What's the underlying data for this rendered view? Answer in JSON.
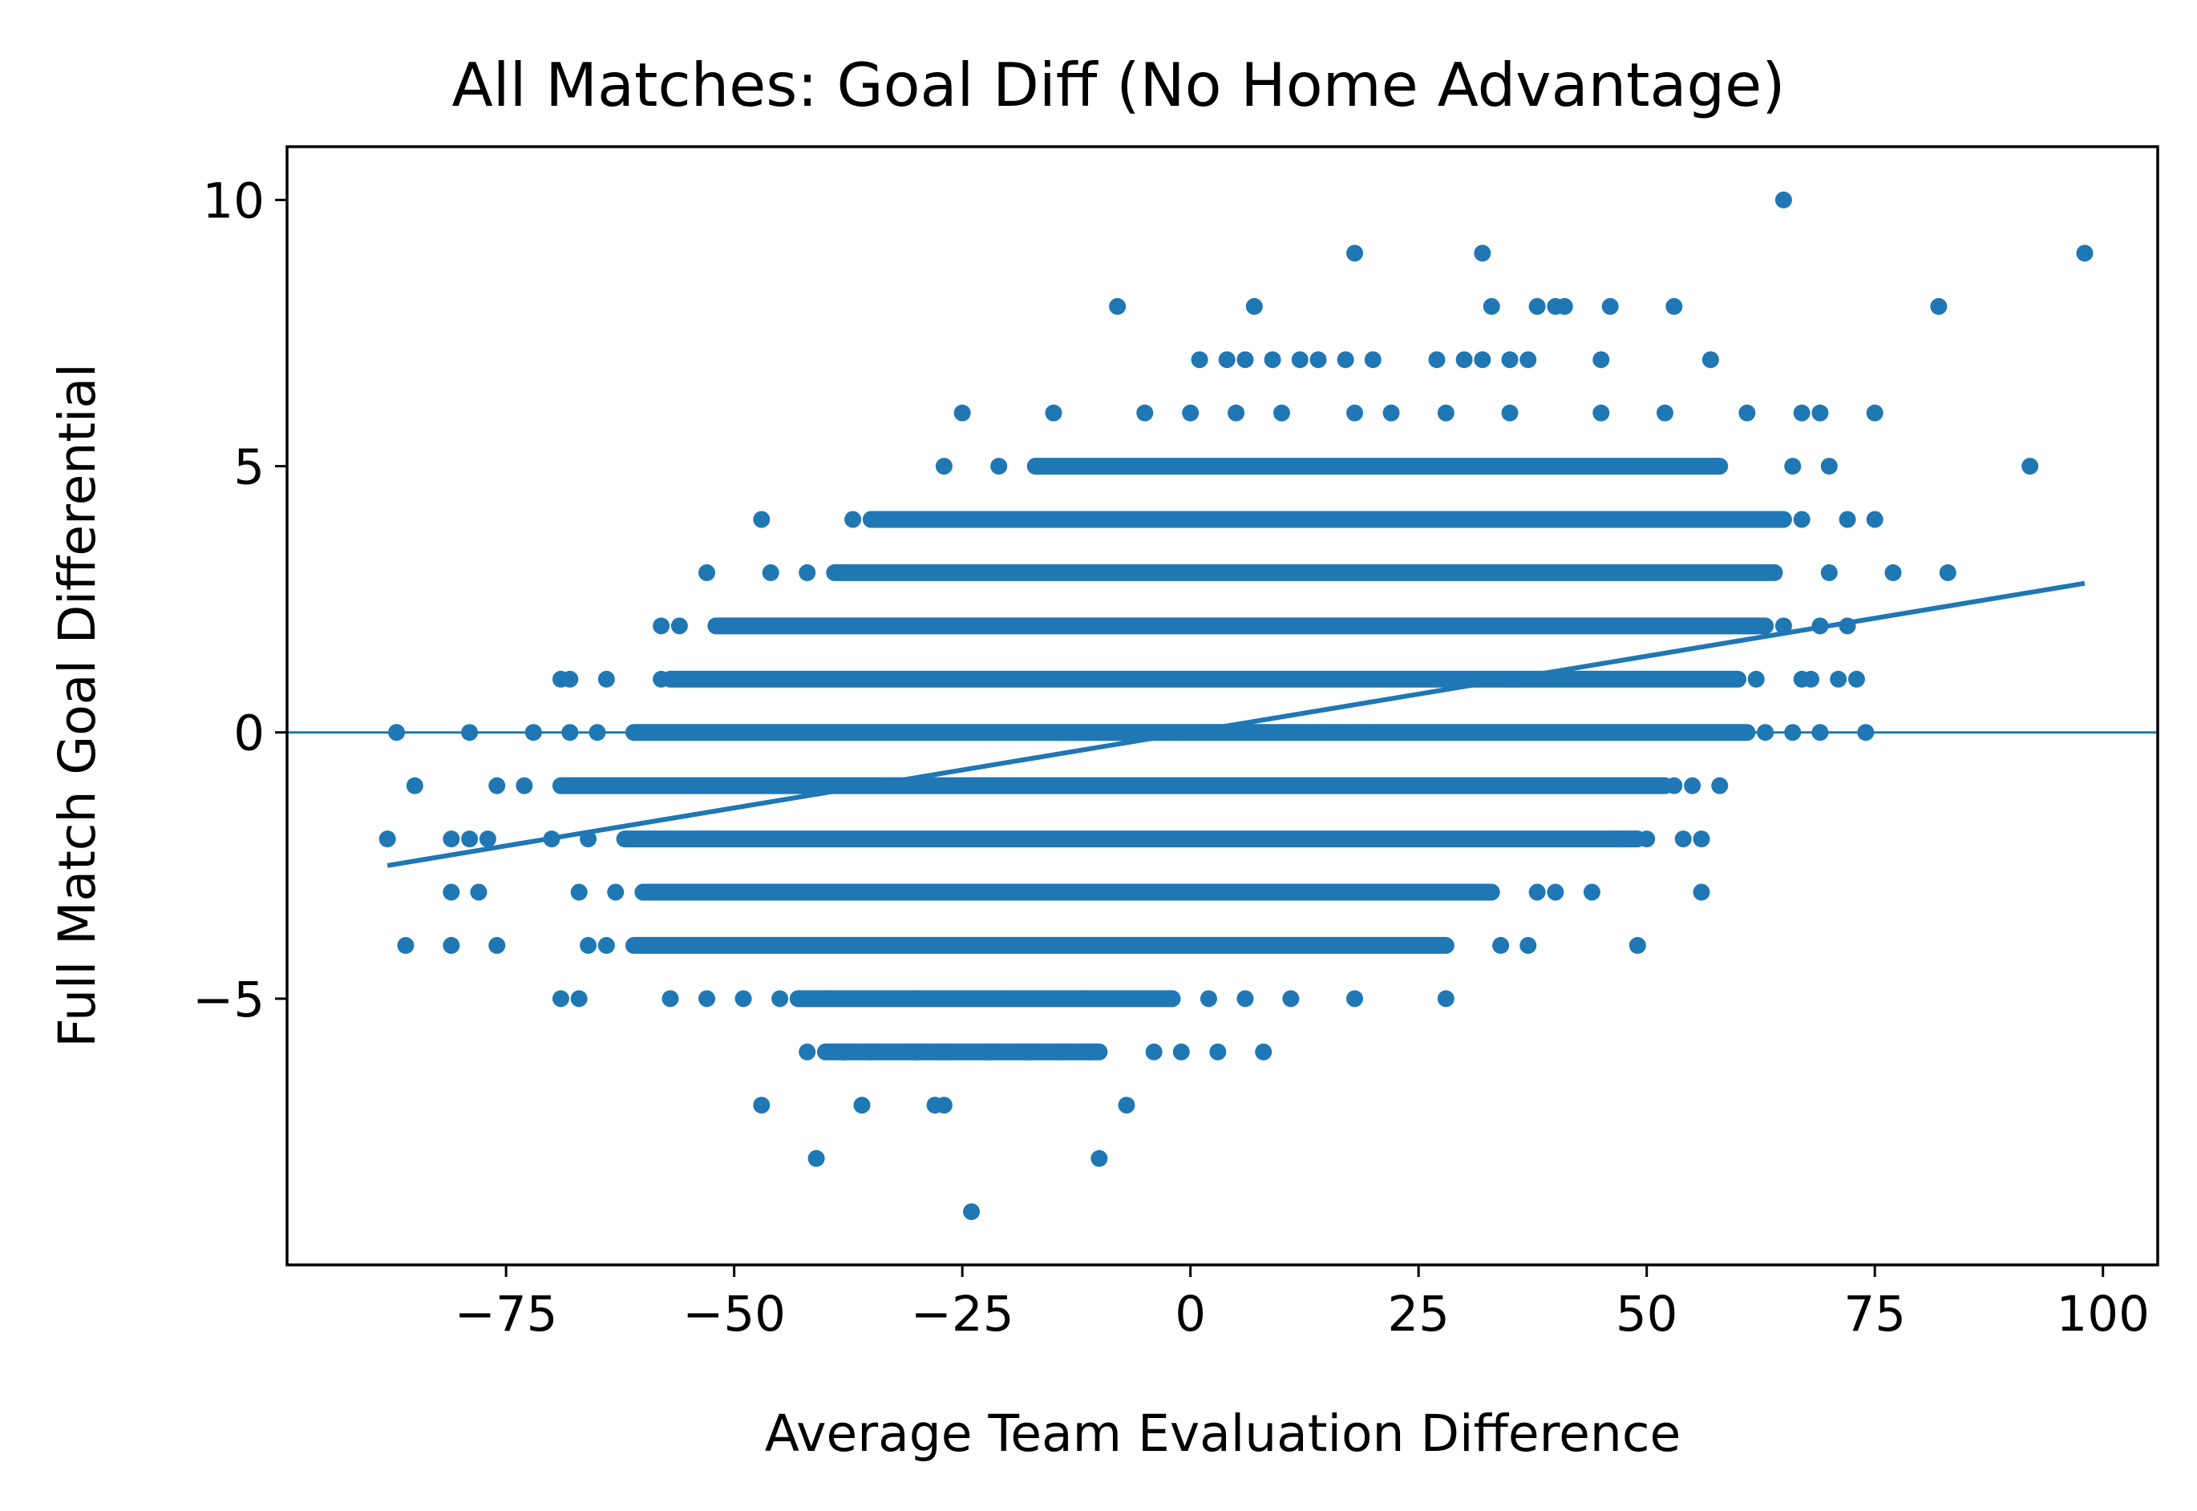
{
  "chart_data": {
    "type": "scatter",
    "title": "All Matches: Goal Diff (No Home Advantage)",
    "xlabel": "Average Team Evaluation Difference",
    "ylabel": "Full Match Goal Differential",
    "xlim": [
      -99,
      106
    ],
    "ylim": [
      -10,
      11
    ],
    "x_ticks": [
      -75,
      -50,
      -25,
      0,
      25,
      50,
      75,
      100
    ],
    "y_ticks": [
      -5,
      0,
      5,
      10
    ],
    "x_tick_labels": [
      "−75",
      "−50",
      "−25",
      "0",
      "25",
      "50",
      "75",
      "100"
    ],
    "y_tick_labels": [
      "−5",
      "0",
      "5",
      "10"
    ],
    "grid": false,
    "legend": false,
    "color": "#1f77b4",
    "points": [
      {
        "x": 65,
        "y": 10
      },
      {
        "x": 98,
        "y": 9
      },
      {
        "x": 18,
        "y": 9
      },
      {
        "x": 32,
        "y": 9
      },
      {
        "x": -8,
        "y": 8
      },
      {
        "x": 7,
        "y": 8
      },
      {
        "x": 33,
        "y": 8
      },
      {
        "x": 38,
        "y": 8
      },
      {
        "x": 40,
        "y": 8
      },
      {
        "x": 41,
        "y": 8
      },
      {
        "x": 46,
        "y": 8
      },
      {
        "x": 53,
        "y": 8
      },
      {
        "x": 82,
        "y": 8
      },
      {
        "x": 1,
        "y": 7
      },
      {
        "x": 4,
        "y": 7
      },
      {
        "x": 6,
        "y": 7
      },
      {
        "x": 9,
        "y": 7
      },
      {
        "x": 12,
        "y": 7
      },
      {
        "x": 14,
        "y": 7
      },
      {
        "x": 17,
        "y": 7
      },
      {
        "x": 20,
        "y": 7
      },
      {
        "x": 27,
        "y": 7
      },
      {
        "x": 30,
        "y": 7
      },
      {
        "x": 32,
        "y": 7
      },
      {
        "x": 35,
        "y": 7
      },
      {
        "x": 37,
        "y": 7
      },
      {
        "x": 45,
        "y": 7
      },
      {
        "x": 57,
        "y": 7
      },
      {
        "x": -25,
        "y": 6
      },
      {
        "x": -15,
        "y": 6
      },
      {
        "x": -5,
        "y": 6
      },
      {
        "x": 0,
        "y": 6
      },
      {
        "x": 5,
        "y": 6
      },
      {
        "x": 10,
        "y": 6
      },
      {
        "x": 18,
        "y": 6
      },
      {
        "x": 22,
        "y": 6
      },
      {
        "x": 28,
        "y": 6
      },
      {
        "x": 35,
        "y": 6
      },
      {
        "x": 45,
        "y": 6
      },
      {
        "x": 52,
        "y": 6
      },
      {
        "x": 61,
        "y": 6
      },
      {
        "x": 67,
        "y": 6
      },
      {
        "x": 69,
        "y": 6
      },
      {
        "x": 75,
        "y": 6
      },
      {
        "x": -27,
        "y": 5
      },
      {
        "x": -21,
        "y": 5
      },
      {
        "x": 66,
        "y": 5
      },
      {
        "x": 70,
        "y": 5
      },
      {
        "x": 92,
        "y": 5
      },
      {
        "x": -47,
        "y": 4
      },
      {
        "x": -37,
        "y": 4
      },
      {
        "x": 67,
        "y": 4
      },
      {
        "x": 72,
        "y": 4
      },
      {
        "x": 75,
        "y": 4
      },
      {
        "x": -53,
        "y": 3
      },
      {
        "x": -46,
        "y": 3
      },
      {
        "x": -42,
        "y": 3
      },
      {
        "x": 70,
        "y": 3
      },
      {
        "x": 77,
        "y": 3
      },
      {
        "x": 83,
        "y": 3
      },
      {
        "x": -58,
        "y": 2
      },
      {
        "x": -56,
        "y": 2
      },
      {
        "x": 65,
        "y": 2
      },
      {
        "x": 69,
        "y": 2
      },
      {
        "x": 72,
        "y": 2
      },
      {
        "x": -69,
        "y": 1
      },
      {
        "x": -68,
        "y": 1
      },
      {
        "x": -64,
        "y": 1
      },
      {
        "x": -58,
        "y": 1
      },
      {
        "x": 62,
        "y": 1
      },
      {
        "x": 67,
        "y": 1
      },
      {
        "x": 68,
        "y": 1
      },
      {
        "x": 71,
        "y": 1
      },
      {
        "x": 73,
        "y": 1
      },
      {
        "x": -87,
        "y": 0
      },
      {
        "x": -79,
        "y": 0
      },
      {
        "x": -72,
        "y": 0
      },
      {
        "x": -68,
        "y": 0
      },
      {
        "x": -65,
        "y": 0
      },
      {
        "x": 63,
        "y": 0
      },
      {
        "x": 66,
        "y": 0
      },
      {
        "x": 69,
        "y": 0
      },
      {
        "x": 74,
        "y": 0
      },
      {
        "x": -85,
        "y": -1
      },
      {
        "x": -76,
        "y": -1
      },
      {
        "x": -73,
        "y": -1
      },
      {
        "x": 53,
        "y": -1
      },
      {
        "x": 55,
        "y": -1
      },
      {
        "x": 58,
        "y": -1
      },
      {
        "x": -88,
        "y": -2
      },
      {
        "x": -81,
        "y": -2
      },
      {
        "x": -79,
        "y": -2
      },
      {
        "x": -77,
        "y": -2
      },
      {
        "x": -70,
        "y": -2
      },
      {
        "x": -66,
        "y": -2
      },
      {
        "x": 47,
        "y": -2
      },
      {
        "x": 50,
        "y": -2
      },
      {
        "x": 54,
        "y": -2
      },
      {
        "x": 56,
        "y": -2
      },
      {
        "x": -81,
        "y": -3
      },
      {
        "x": -78,
        "y": -3
      },
      {
        "x": -67,
        "y": -3
      },
      {
        "x": -63,
        "y": -3
      },
      {
        "x": 38,
        "y": -3
      },
      {
        "x": 40,
        "y": -3
      },
      {
        "x": 44,
        "y": -3
      },
      {
        "x": 56,
        "y": -3
      },
      {
        "x": -86,
        "y": -4
      },
      {
        "x": -81,
        "y": -4
      },
      {
        "x": -76,
        "y": -4
      },
      {
        "x": -66,
        "y": -4
      },
      {
        "x": -64,
        "y": -4
      },
      {
        "x": 34,
        "y": -4
      },
      {
        "x": 37,
        "y": -4
      },
      {
        "x": 49,
        "y": -4
      },
      {
        "x": -69,
        "y": -5
      },
      {
        "x": -67,
        "y": -5
      },
      {
        "x": -57,
        "y": -5
      },
      {
        "x": -53,
        "y": -5
      },
      {
        "x": -49,
        "y": -5
      },
      {
        "x": -45,
        "y": -5
      },
      {
        "x": -40,
        "y": -5
      },
      {
        "x": -30,
        "y": -5
      },
      {
        "x": -20,
        "y": -5
      },
      {
        "x": -12,
        "y": -5
      },
      {
        "x": -2,
        "y": -5
      },
      {
        "x": 2,
        "y": -5
      },
      {
        "x": 6,
        "y": -5
      },
      {
        "x": 11,
        "y": -5
      },
      {
        "x": 18,
        "y": -5
      },
      {
        "x": 28,
        "y": -5
      },
      {
        "x": -42,
        "y": -6
      },
      {
        "x": -38,
        "y": -6
      },
      {
        "x": -35,
        "y": -6
      },
      {
        "x": -30,
        "y": -6
      },
      {
        "x": -27,
        "y": -6
      },
      {
        "x": -22,
        "y": -6
      },
      {
        "x": -18,
        "y": -6
      },
      {
        "x": -14,
        "y": -6
      },
      {
        "x": -11,
        "y": -6
      },
      {
        "x": -4,
        "y": -6
      },
      {
        "x": -1,
        "y": -6
      },
      {
        "x": 3,
        "y": -6
      },
      {
        "x": 8,
        "y": -6
      },
      {
        "x": -47,
        "y": -7
      },
      {
        "x": -36,
        "y": -7
      },
      {
        "x": -28,
        "y": -7
      },
      {
        "x": -27,
        "y": -7
      },
      {
        "x": -7,
        "y": -7
      },
      {
        "x": -41,
        "y": -8
      },
      {
        "x": -10,
        "y": -8
      },
      {
        "x": -24,
        "y": -9
      }
    ],
    "bands": [
      {
        "y": 5,
        "x_range": [
          -17,
          58
        ]
      },
      {
        "y": 4,
        "x_range": [
          -35,
          65
        ]
      },
      {
        "y": 3,
        "x_range": [
          -39,
          64
        ]
      },
      {
        "y": 2,
        "x_range": [
          -52,
          63
        ]
      },
      {
        "y": 1,
        "x_range": [
          -57,
          60
        ]
      },
      {
        "y": 0,
        "x_range": [
          -61,
          61
        ]
      },
      {
        "y": -1,
        "x_range": [
          -69,
          52
        ]
      },
      {
        "y": -2,
        "x_range": [
          -62,
          49
        ]
      },
      {
        "y": -3,
        "x_range": [
          -60,
          33
        ]
      },
      {
        "y": -4,
        "x_range": [
          -61,
          28
        ]
      },
      {
        "y": -5,
        "x_range": [
          -43,
          -2
        ]
      },
      {
        "y": -6,
        "x_range": [
          -40,
          -10
        ]
      }
    ],
    "regression_line": {
      "x": [
        -88,
        98
      ],
      "y": [
        -2.5,
        2.8
      ]
    },
    "zero_line_y": 0
  }
}
